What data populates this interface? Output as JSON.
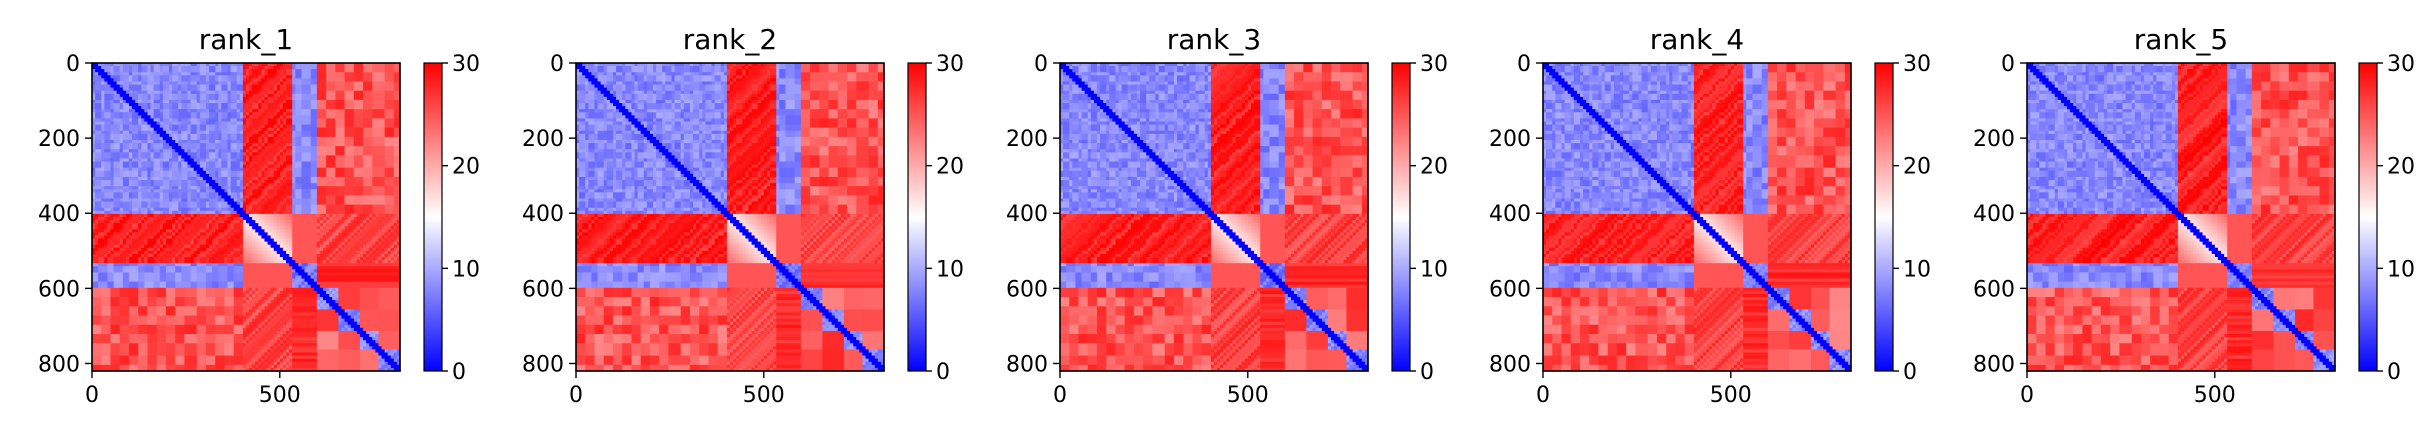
{
  "colors": {
    "low": "#0000ff",
    "mid": "#ffffff",
    "high": "#ff0000",
    "axis": "#000000",
    "background": "#ffffff"
  },
  "chart_data": [
    {
      "type": "heatmap",
      "title": "rank_1",
      "matrix_size": 820,
      "x_ticks": [
        0,
        500
      ],
      "y_ticks": [
        0,
        200,
        400,
        600,
        800
      ],
      "xlim": [
        0,
        820
      ],
      "ylim": [
        820,
        0
      ],
      "colorbar": {
        "range": [
          0,
          30
        ],
        "ticks": [
          0,
          10,
          20,
          30
        ],
        "colormap": "bwr"
      }
    },
    {
      "type": "heatmap",
      "title": "rank_2",
      "matrix_size": 820,
      "x_ticks": [
        0,
        500
      ],
      "y_ticks": [
        0,
        200,
        400,
        600,
        800
      ],
      "xlim": [
        0,
        820
      ],
      "ylim": [
        820,
        0
      ],
      "colorbar": {
        "range": [
          0,
          30
        ],
        "ticks": [
          0,
          10,
          20,
          30
        ],
        "colormap": "bwr"
      }
    },
    {
      "type": "heatmap",
      "title": "rank_3",
      "matrix_size": 820,
      "x_ticks": [
        0,
        500
      ],
      "y_ticks": [
        0,
        200,
        400,
        600,
        800
      ],
      "xlim": [
        0,
        820
      ],
      "ylim": [
        820,
        0
      ],
      "colorbar": {
        "range": [
          0,
          30
        ],
        "ticks": [
          0,
          10,
          20,
          30
        ],
        "colormap": "bwr"
      }
    },
    {
      "type": "heatmap",
      "title": "rank_4",
      "matrix_size": 820,
      "x_ticks": [
        0,
        500
      ],
      "y_ticks": [
        0,
        200,
        400,
        600,
        800
      ],
      "xlim": [
        0,
        820
      ],
      "ylim": [
        820,
        0
      ],
      "colorbar": {
        "range": [
          0,
          30
        ],
        "ticks": [
          0,
          10,
          20,
          30
        ],
        "colormap": "bwr"
      }
    },
    {
      "type": "heatmap",
      "title": "rank_5",
      "matrix_size": 820,
      "x_ticks": [
        0,
        500
      ],
      "y_ticks": [
        0,
        200,
        400,
        600,
        800
      ],
      "xlim": [
        0,
        820
      ],
      "ylim": [
        820,
        0
      ],
      "colorbar": {
        "range": [
          0,
          30
        ],
        "ticks": [
          0,
          10,
          20,
          30
        ],
        "colormap": "bwr"
      }
    }
  ]
}
